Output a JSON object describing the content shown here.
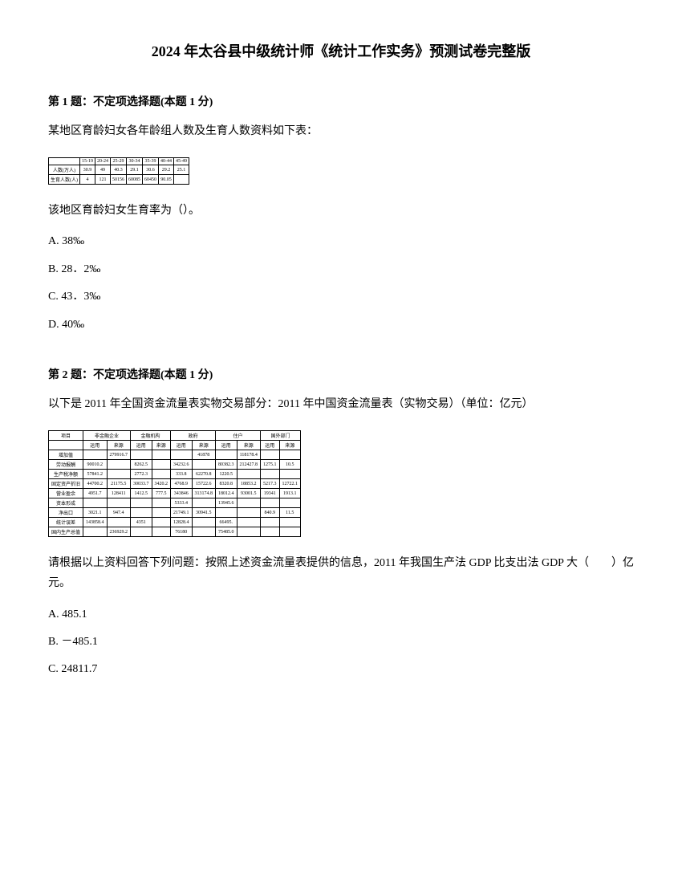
{
  "title": "2024 年太谷县中级统计师《统计工作实务》预测试卷完整版",
  "q1": {
    "header": "第 1 题：不定项选择题(本题 1 分)",
    "text": "某地区育龄妇女各年龄组人数及生育人数资料如下表：",
    "postText": "该地区育龄妇女生育率为（）。",
    "options": {
      "a": "A. 38‰",
      "b": "B. 28．2‰",
      "c": "C. 43．3‰",
      "d": "D. 40‰"
    },
    "table": {
      "headers": [
        "",
        "15-19",
        "20-24",
        "25-29",
        "30-34",
        "35-39",
        "40-44",
        "45-49"
      ],
      "row1_label": "人数(万人)",
      "row1_values": [
        "30.9",
        "49",
        "40.3",
        "29.1",
        "30.6",
        "29.2",
        "25.1"
      ],
      "row2_label": "生育人数(人)",
      "row2_values": [
        "4",
        "121",
        "50156",
        "60085",
        "60450",
        "90.05",
        ""
      ]
    }
  },
  "q2": {
    "header": "第 2 题：不定项选择题(本题 1 分)",
    "text": "以下是 2011 年全国资金流量表实物交易部分：2011 年中国资金流量表（实物交易）（单位：亿元）",
    "postText": "请根据以上资料回答下列问题：按照上述资金流量表提供的信息，2011 年我国生产法 GDP 比支出法 GDP 大（　　）亿元。",
    "options": {
      "a": "A. 485.1",
      "b": "B. －485.1",
      "c": "C. 24811.7"
    },
    "table": {
      "headers": [
        "项目",
        "非金融企业",
        "金融机构",
        "政府",
        "住户",
        "国外部门"
      ],
      "subheaders": [
        "",
        "运用",
        "来源",
        "运用",
        "来源",
        "运用",
        "来源",
        "运用",
        "来源",
        "运用",
        "来源"
      ],
      "rows": [
        [
          "增加值",
          "",
          "279916.7",
          "",
          "",
          "",
          "41878",
          "",
          "118178.4",
          "",
          ""
        ],
        [
          "劳动报酬",
          "90010.2",
          "",
          "8262.5",
          "",
          "34232.6",
          "",
          "80382.3",
          "212427.8",
          "1275.1",
          "10.5"
        ],
        [
          "生产税净额",
          "57841.2",
          "",
          "2772.3",
          "",
          "333.8",
          "62270.8",
          "1220.5",
          "",
          "",
          ""
        ],
        [
          "固定资产折旧",
          "44700.2",
          "21175.5",
          "30033.7",
          "3420.2",
          "4768.9",
          "15722.6",
          "8320.8",
          "18853.2",
          "5217.3",
          "12722.1"
        ],
        [
          "营业盈余",
          "4951.7",
          "128411",
          "1412.5",
          "777.5",
          "343846",
          "313174.8",
          "18012.4",
          "93001.5",
          "19341",
          "1913.1"
        ],
        [
          "资本形成",
          "",
          "",
          "",
          "",
          "5333.4",
          "",
          "13945.6",
          "",
          "",
          ""
        ],
        [
          "净出口",
          "3021.1",
          "947.4",
          "",
          "",
          "21749.1",
          "30941.5",
          "",
          "",
          "840.9",
          "11.5"
        ],
        [
          "统计误差",
          "143858.4",
          "",
          "4351",
          "",
          "12828.4",
          "",
          "66495.",
          "",
          "",
          ""
        ],
        [
          "国内生产总值",
          "",
          "236929.2",
          "",
          "",
          "76180",
          "",
          "75485.0",
          "",
          "",
          ""
        ]
      ]
    }
  }
}
